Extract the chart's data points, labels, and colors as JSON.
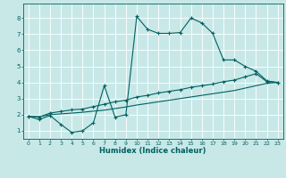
{
  "xlabel": "Humidex (Indice chaleur)",
  "ylabel": "",
  "background_color": "#c8e8e8",
  "grid_color": "#ffffff",
  "line_color": "#006060",
  "xlim": [
    -0.5,
    23.5
  ],
  "ylim": [
    0.5,
    8.9
  ],
  "xticks": [
    0,
    1,
    2,
    3,
    4,
    5,
    6,
    7,
    8,
    9,
    10,
    11,
    12,
    13,
    14,
    15,
    16,
    17,
    18,
    19,
    20,
    21,
    22,
    23
  ],
  "yticks": [
    1,
    2,
    3,
    4,
    5,
    6,
    7,
    8
  ],
  "series1_x": [
    0,
    1,
    2,
    3,
    4,
    5,
    6,
    7,
    8,
    9,
    10,
    11,
    12,
    13,
    14,
    15,
    16,
    17,
    18,
    19,
    20,
    21,
    22,
    23
  ],
  "series1_y": [
    1.9,
    1.7,
    1.95,
    1.4,
    0.9,
    1.0,
    1.5,
    3.8,
    1.85,
    2.0,
    8.1,
    7.3,
    7.05,
    7.05,
    7.1,
    8.0,
    7.7,
    7.05,
    5.4,
    5.4,
    5.0,
    4.7,
    4.1,
    4.0
  ],
  "series2_x": [
    0,
    1,
    2,
    3,
    4,
    5,
    6,
    7,
    8,
    9,
    10,
    11,
    12,
    13,
    14,
    15,
    16,
    17,
    18,
    19,
    20,
    21,
    22,
    23
  ],
  "series2_y": [
    1.9,
    1.85,
    2.1,
    2.2,
    2.3,
    2.35,
    2.5,
    2.65,
    2.8,
    2.9,
    3.1,
    3.2,
    3.35,
    3.45,
    3.55,
    3.7,
    3.8,
    3.9,
    4.05,
    4.15,
    4.35,
    4.55,
    4.05,
    4.0
  ],
  "series3_x": [
    0,
    1,
    2,
    3,
    4,
    5,
    6,
    7,
    8,
    9,
    10,
    11,
    12,
    13,
    14,
    15,
    16,
    17,
    18,
    19,
    20,
    21,
    22,
    23
  ],
  "series3_y": [
    1.9,
    1.88,
    2.0,
    2.05,
    2.1,
    2.15,
    2.22,
    2.28,
    2.38,
    2.48,
    2.6,
    2.7,
    2.8,
    2.9,
    3.0,
    3.1,
    3.2,
    3.3,
    3.4,
    3.5,
    3.65,
    3.8,
    3.95,
    4.0
  ]
}
